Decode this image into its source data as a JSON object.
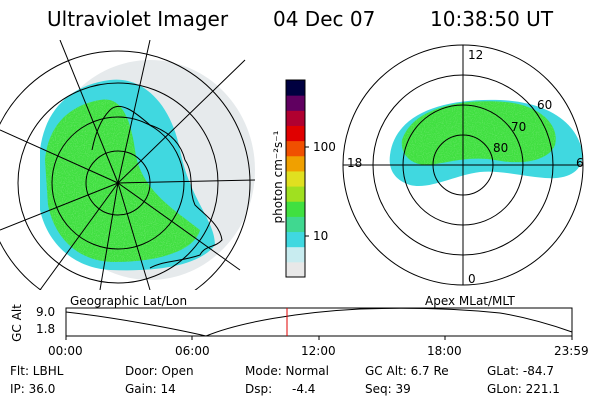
{
  "header": {
    "title": "Ultraviolet Imager",
    "date": "04 Dec 07",
    "time": "10:38:50 UT"
  },
  "left_panel": {
    "label": "Geographic Lat/Lon"
  },
  "right_panel": {
    "label": "Apex MLat/MLT",
    "mlt_labels": [
      "12",
      "18",
      "6",
      "0"
    ],
    "mlat_labels": [
      "60",
      "70",
      "80"
    ]
  },
  "colorbar": {
    "unit_label": "photon cm⁻²s⁻¹",
    "tick_labels": [
      "100",
      "10"
    ],
    "colors": [
      "#e8e8e8",
      "#c8ecf0",
      "#40d8e0",
      "#40d890",
      "#40e040",
      "#a0e020",
      "#e0e020",
      "#f0a000",
      "#f05000",
      "#e00000",
      "#b00030",
      "#600060",
      "#000040"
    ]
  },
  "altitude_plot": {
    "ylabel": "GC Alt",
    "ytick_labels": [
      "9.0",
      "1.8"
    ],
    "xtick_labels": [
      "00:00",
      "06:00",
      "12:00",
      "18:00",
      "23:59"
    ],
    "current_time_color": "#e00000"
  },
  "info": {
    "row1": {
      "flt": "Flt: LBHL",
      "door": "Door: Open",
      "mode": "Mode: Normal",
      "gcalt": "GC Alt: 6.7 Re",
      "glat": "GLat: -84.7"
    },
    "row2": {
      "ip": "IP: 36.0",
      "gain": "Gain: 14",
      "dsp_label": "Dsp:",
      "dsp_value": "-4.4",
      "seq": "Seq: 39",
      "glon": "GLon: 221.1"
    }
  },
  "colors": {
    "aurora_green": "#40e040",
    "aurora_cyan": "#40d8e0",
    "haze": "#e6eaec",
    "marker": "#e00000"
  }
}
